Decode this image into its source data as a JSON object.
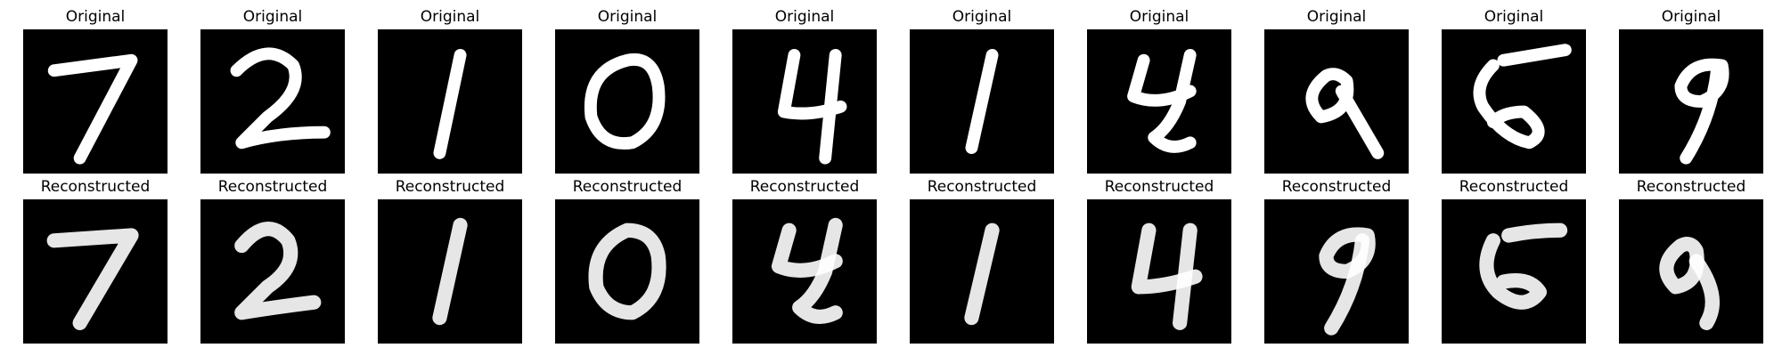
{
  "rows": [
    {
      "name": "original",
      "title": "Original",
      "digits": [
        "7",
        "2",
        "1",
        "0",
        "4",
        "1",
        "4",
        "9",
        "5",
        "9"
      ]
    },
    {
      "name": "reconstructed",
      "title": "Reconstructed",
      "digits": [
        "7",
        "2",
        "1",
        "0",
        "4",
        "1",
        "4",
        "9",
        "5",
        "9"
      ]
    }
  ],
  "colors": {
    "background": "#000000",
    "stroke": "#ffffff"
  }
}
